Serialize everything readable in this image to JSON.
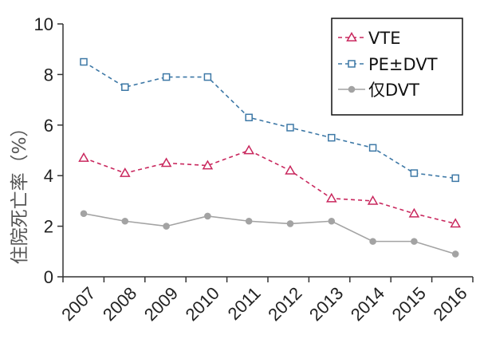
{
  "chart_data": {
    "type": "line",
    "title": "",
    "xlabel": "",
    "ylabel": "住院死亡率（%）",
    "categories": [
      "2007",
      "2008",
      "2009",
      "2010",
      "2011",
      "2012",
      "2013",
      "2014",
      "2015",
      "2016"
    ],
    "ylim": [
      0,
      10
    ],
    "yticks": [
      0,
      2,
      4,
      6,
      8,
      10
    ],
    "grid": false,
    "legend_position": "top-right",
    "series": [
      {
        "name": "VTE",
        "color": "#c9285e",
        "marker": "triangle",
        "dash": "dashed",
        "values": [
          4.7,
          4.1,
          4.5,
          4.4,
          5.0,
          4.2,
          3.1,
          3.0,
          2.5,
          2.1
        ]
      },
      {
        "name": "PE±DVT",
        "color": "#3d78a6",
        "marker": "square",
        "dash": "dashed",
        "values": [
          8.5,
          7.5,
          7.9,
          7.9,
          6.3,
          5.9,
          5.5,
          5.1,
          4.1,
          3.9
        ]
      },
      {
        "name": "仅DVT",
        "color": "#a3a3a3",
        "marker": "circle",
        "dash": "solid",
        "values": [
          2.5,
          2.2,
          2.0,
          2.4,
          2.2,
          2.1,
          2.2,
          1.4,
          1.4,
          0.9
        ]
      }
    ]
  }
}
